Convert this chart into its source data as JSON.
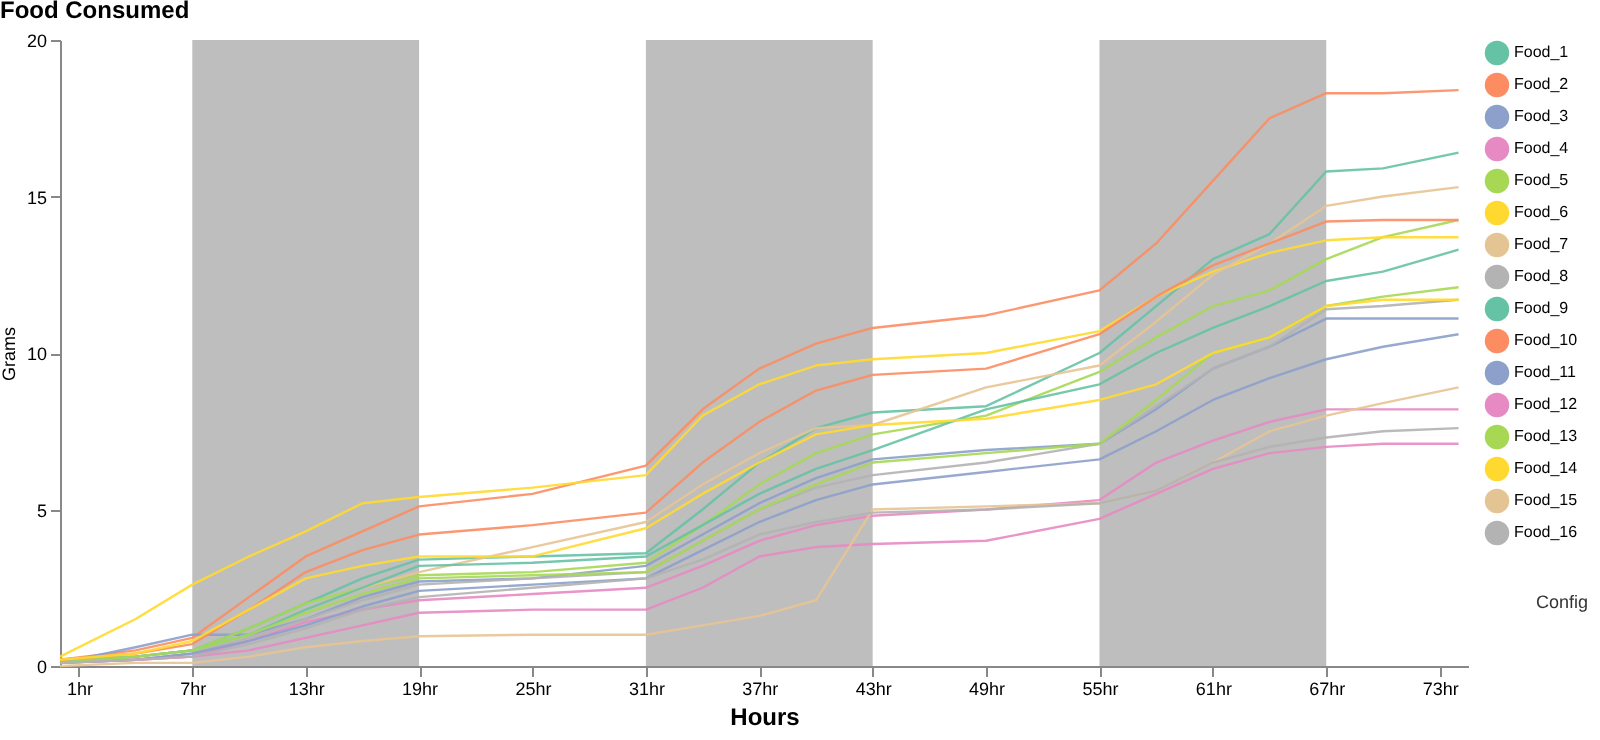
{
  "chart_data": {
    "type": "line",
    "title": "Food Consumed",
    "xlabel": "Hours",
    "ylabel": "Grams",
    "x": [
      0,
      4,
      7,
      10,
      13,
      16,
      19,
      25,
      31,
      34,
      37,
      40,
      43,
      49,
      55,
      58,
      61,
      64,
      67,
      70,
      74
    ],
    "xlim": [
      0,
      74.5
    ],
    "xticks": [
      {
        "value": 1,
        "label": "1hr"
      },
      {
        "value": 7,
        "label": "7hr"
      },
      {
        "value": 13,
        "label": "13hr"
      },
      {
        "value": 19,
        "label": "19hr"
      },
      {
        "value": 25,
        "label": "25hr"
      },
      {
        "value": 31,
        "label": "31hr"
      },
      {
        "value": 37,
        "label": "37hr"
      },
      {
        "value": 43,
        "label": "43hr"
      },
      {
        "value": 49,
        "label": "49hr"
      },
      {
        "value": 55,
        "label": "55hr"
      },
      {
        "value": 61,
        "label": "61hr"
      },
      {
        "value": 67,
        "label": "67hr"
      },
      {
        "value": 73,
        "label": "73hr"
      }
    ],
    "ylim": [
      0,
      20
    ],
    "yticks": [
      0,
      5,
      10,
      15,
      20
    ],
    "grid": false,
    "legend": "right",
    "marker": "none",
    "line_style": "solid",
    "bands": [
      {
        "axis": "x",
        "from": 7,
        "to": 19,
        "color": "#bebebe"
      },
      {
        "axis": "x",
        "from": 31,
        "to": 43,
        "color": "#bebebe"
      },
      {
        "axis": "x",
        "from": 55,
        "to": 67,
        "color": "#bebebe"
      }
    ],
    "annotations": [
      "Config"
    ],
    "series": [
      {
        "name": "Food_1",
        "color": "#66c2a5",
        "values": [
          0.2,
          0.3,
          0.5,
          1.2,
          2.0,
          2.8,
          3.4,
          3.5,
          3.6,
          5.0,
          6.5,
          7.6,
          8.1,
          8.3,
          10.0,
          11.5,
          13.0,
          13.8,
          15.8,
          15.9,
          16.4
        ]
      },
      {
        "name": "Food_2",
        "color": "#fc8d62",
        "values": [
          0.2,
          0.5,
          0.9,
          2.2,
          3.5,
          4.3,
          5.1,
          5.5,
          6.4,
          8.2,
          9.5,
          10.3,
          10.8,
          11.2,
          12.0,
          13.5,
          15.5,
          17.5,
          18.3,
          18.3,
          18.4
        ]
      },
      {
        "name": "Food_3",
        "color": "#8da0cb",
        "values": [
          0.1,
          0.6,
          1.0,
          1.0,
          1.5,
          2.2,
          2.7,
          2.8,
          3.2,
          4.2,
          5.2,
          6.0,
          6.6,
          6.9,
          7.1,
          8.2,
          9.5,
          10.2,
          11.1,
          11.1,
          11.1
        ]
      },
      {
        "name": "Food_4",
        "color": "#e78ac3",
        "values": [
          0.1,
          0.2,
          0.3,
          0.8,
          1.4,
          1.8,
          2.1,
          2.3,
          2.5,
          3.2,
          4.0,
          4.5,
          4.8,
          5.0,
          5.3,
          6.5,
          7.2,
          7.8,
          8.2,
          8.2,
          8.2
        ]
      },
      {
        "name": "Food_5",
        "color": "#a6d854",
        "values": [
          0.2,
          0.3,
          0.5,
          1.2,
          2.0,
          2.5,
          2.9,
          3.0,
          3.3,
          4.5,
          5.8,
          6.8,
          7.4,
          8.0,
          9.4,
          10.5,
          11.5,
          12.0,
          13.0,
          13.7,
          14.25
        ]
      },
      {
        "name": "Food_6",
        "color": "#ffd92f",
        "values": [
          0.3,
          1.5,
          2.6,
          3.5,
          4.3,
          5.2,
          5.4,
          5.7,
          6.1,
          8.0,
          9.0,
          9.6,
          9.8,
          10.0,
          10.7,
          11.8,
          12.6,
          13.2,
          13.6,
          13.7,
          13.7
        ]
      },
      {
        "name": "Food_7",
        "color": "#e5c494",
        "values": [
          0.1,
          0.3,
          0.5,
          1.0,
          1.8,
          2.5,
          3.0,
          3.8,
          4.6,
          5.8,
          6.8,
          7.6,
          7.7,
          8.9,
          9.6,
          11.0,
          12.5,
          13.5,
          14.7,
          15.0,
          15.3
        ]
      },
      {
        "name": "Food_8",
        "color": "#b3b3b3",
        "values": [
          0.1,
          0.2,
          0.4,
          0.9,
          1.5,
          2.1,
          2.6,
          2.8,
          3.0,
          4.0,
          5.0,
          5.7,
          6.1,
          6.5,
          7.1,
          8.3,
          9.5,
          10.2,
          11.4,
          11.5,
          11.7
        ]
      },
      {
        "name": "Food_9",
        "color": "#66c2a5",
        "values": [
          0.1,
          0.3,
          0.5,
          1.0,
          1.8,
          2.5,
          3.2,
          3.3,
          3.5,
          4.5,
          5.5,
          6.3,
          6.9,
          8.2,
          9.0,
          10.0,
          10.8,
          11.5,
          12.3,
          12.6,
          13.3
        ]
      },
      {
        "name": "Food_10",
        "color": "#fc8d62",
        "values": [
          0.2,
          0.4,
          0.7,
          1.8,
          3.0,
          3.7,
          4.2,
          4.5,
          4.9,
          6.5,
          7.8,
          8.8,
          9.3,
          9.5,
          10.6,
          11.8,
          12.8,
          13.5,
          14.2,
          14.25,
          14.25
        ]
      },
      {
        "name": "Food_11",
        "color": "#8da0cb",
        "values": [
          0.1,
          0.2,
          0.4,
          0.8,
          1.3,
          1.9,
          2.4,
          2.6,
          2.8,
          3.7,
          4.6,
          5.3,
          5.8,
          6.2,
          6.6,
          7.5,
          8.5,
          9.2,
          9.8,
          10.2,
          10.6
        ]
      },
      {
        "name": "Food_12",
        "color": "#e78ac3",
        "values": [
          0.1,
          0.2,
          0.3,
          0.5,
          0.9,
          1.3,
          1.7,
          1.8,
          1.8,
          2.5,
          3.5,
          3.8,
          3.9,
          4.0,
          4.7,
          5.5,
          6.3,
          6.8,
          7.0,
          7.1,
          7.1
        ]
      },
      {
        "name": "Food_13",
        "color": "#a6d854",
        "values": [
          0.1,
          0.3,
          0.5,
          1.0,
          1.7,
          2.3,
          2.8,
          2.9,
          3.0,
          4.0,
          5.0,
          5.8,
          6.5,
          6.8,
          7.1,
          8.5,
          10.0,
          10.5,
          11.5,
          11.8,
          12.1
        ]
      },
      {
        "name": "Food_14",
        "color": "#ffd92f",
        "values": [
          0.2,
          0.4,
          0.8,
          1.8,
          2.8,
          3.2,
          3.5,
          3.5,
          4.4,
          5.5,
          6.5,
          7.4,
          7.7,
          7.9,
          8.5,
          9.0,
          10.0,
          10.5,
          11.5,
          11.7,
          11.7
        ]
      },
      {
        "name": "Food_15",
        "color": "#e5c494",
        "values": [
          0.0,
          0.1,
          0.1,
          0.3,
          0.6,
          0.8,
          0.95,
          1.0,
          1.0,
          1.3,
          1.6,
          2.1,
          5.0,
          5.1,
          5.2,
          5.6,
          6.5,
          7.5,
          8.0,
          8.4,
          8.9
        ]
      },
      {
        "name": "Food_16",
        "color": "#b3b3b3",
        "values": [
          0.1,
          0.2,
          0.3,
          0.7,
          1.2,
          1.8,
          2.2,
          2.5,
          2.8,
          3.4,
          4.2,
          4.6,
          4.9,
          5.0,
          5.2,
          5.6,
          6.5,
          7.0,
          7.3,
          7.5,
          7.6
        ]
      }
    ]
  }
}
